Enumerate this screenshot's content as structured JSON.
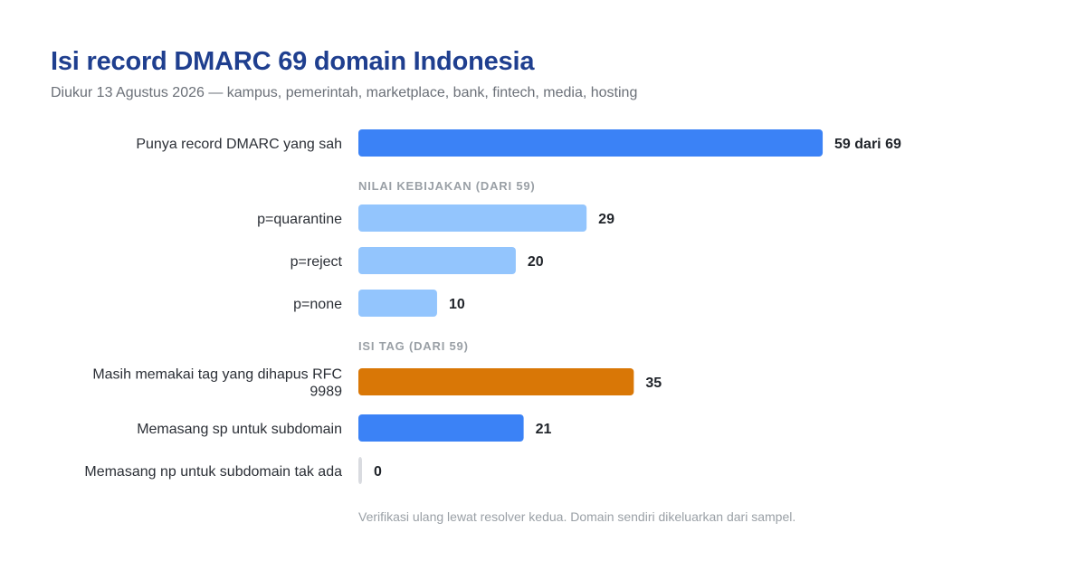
{
  "title": "Isi record DMARC 69 domain Indonesia",
  "subtitle": "Diukur 13 Agustus 2026 — kampus, pemerintah, marketplace, bank, fintech, media, hosting",
  "note": "Verifikasi ulang lewat resolver kedua. Domain sendiri dikeluarkan dari sampel.",
  "chart_data": {
    "type": "bar",
    "orientation": "horizontal",
    "xlim": [
      0,
      69
    ],
    "grid": false,
    "rows": [
      {
        "kind": "bar",
        "label": [
          "Punya record DMARC yang sah"
        ],
        "value": 59,
        "value_label": "59 dari 69",
        "color": "#3b82f6"
      },
      {
        "kind": "section",
        "label": "NILAI KEBIJAKAN (DARI 59)"
      },
      {
        "kind": "bar",
        "label": [
          "p=quarantine"
        ],
        "value": 29,
        "value_label": "29",
        "color": "#93c5fd"
      },
      {
        "kind": "bar",
        "label": [
          "p=reject"
        ],
        "value": 20,
        "value_label": "20",
        "color": "#93c5fd"
      },
      {
        "kind": "bar",
        "label": [
          "p=none"
        ],
        "value": 10,
        "value_label": "10",
        "color": "#93c5fd"
      },
      {
        "kind": "section",
        "label": "ISI TAG (DARI 59)"
      },
      {
        "kind": "bar",
        "label": [
          "Masih memakai tag yang dihapus RFC",
          "9989"
        ],
        "value": 35,
        "value_label": "35",
        "color": "#d97706"
      },
      {
        "kind": "bar",
        "label": [
          "Memasang sp untuk subdomain"
        ],
        "value": 21,
        "value_label": "21",
        "color": "#3b82f6"
      },
      {
        "kind": "bar",
        "label": [
          "Memasang np untuk subdomain tak ada"
        ],
        "value": 0,
        "value_label": "0",
        "color": "#d9dbe0"
      }
    ]
  }
}
